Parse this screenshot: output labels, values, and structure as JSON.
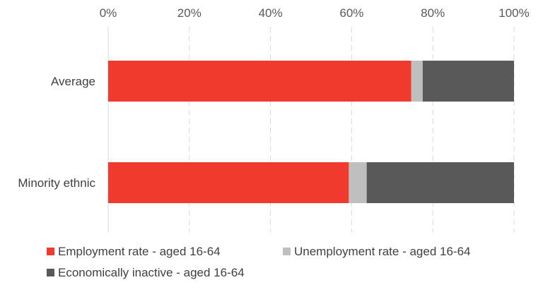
{
  "chart_data": {
    "type": "bar",
    "orientation": "horizontal",
    "stacked": "percent",
    "categories": [
      "Average",
      "Minority ethnic"
    ],
    "series": [
      {
        "name": "Employment rate - aged 16-64",
        "values": [
          74.7,
          59.3
        ],
        "color": "#F03A2D"
      },
      {
        "name": "Unemployment rate - aged 16-64",
        "values": [
          2.8,
          4.4
        ],
        "color": "#BFBFBF"
      },
      {
        "name": "Economically inactive - aged 16-64",
        "values": [
          22.5,
          36.3
        ],
        "color": "#595959"
      }
    ],
    "xlim": [
      0,
      100
    ],
    "xticks": [
      "0%",
      "20%",
      "40%",
      "60%",
      "80%",
      "100%"
    ],
    "xtick_values": [
      0,
      20,
      40,
      60,
      80,
      100
    ],
    "x_axis_position": "top",
    "grid": "vertical dashed",
    "legend_position": "bottom",
    "title": "",
    "xlabel": "",
    "ylabel": ""
  }
}
